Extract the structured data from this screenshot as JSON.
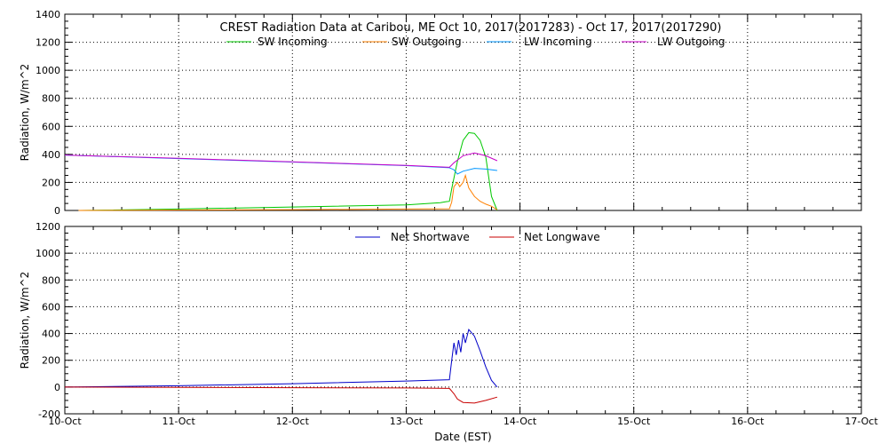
{
  "title": "CREST Radiation Data at Caribou, ME   Oct 10, 2017(2017283) - Oct 17, 2017(2017290)",
  "colors": {
    "sw_incoming": "#00c800",
    "sw_outgoing": "#ff8000",
    "lw_incoming": "#0096ff",
    "lw_outgoing": "#c800c8",
    "net_shortwave": "#0000c8",
    "net_longwave": "#c80000"
  },
  "chart_data": [
    {
      "type": "line",
      "ylabel": "Radiation, W/m^2",
      "ylim": [
        0,
        1400
      ],
      "yticks": [
        "0",
        "200",
        "400",
        "600",
        "800",
        "1000",
        "1200",
        "1400"
      ],
      "xlim": [
        0,
        7
      ],
      "grid": true,
      "legend": "top",
      "series": [
        {
          "name": "SW Incoming",
          "color_key": "sw_incoming",
          "points": [
            [
              0.12,
              0
            ],
            [
              1,
              10
            ],
            [
              2,
              25
            ],
            [
              3,
              40
            ],
            [
              3.3,
              55
            ],
            [
              3.35,
              63
            ],
            [
              3.38,
              65
            ],
            [
              3.4,
              155
            ],
            [
              3.45,
              350
            ],
            [
              3.5,
              500
            ],
            [
              3.55,
              555
            ],
            [
              3.6,
              550
            ],
            [
              3.65,
              500
            ],
            [
              3.7,
              380
            ],
            [
              3.75,
              100
            ],
            [
              3.8,
              0
            ]
          ]
        },
        {
          "name": "SW Outgoing",
          "color_key": "sw_outgoing",
          "points": [
            [
              0.12,
              0
            ],
            [
              1,
              3
            ],
            [
              2,
              6
            ],
            [
              3,
              10
            ],
            [
              3.38,
              12
            ],
            [
              3.4,
              60
            ],
            [
              3.42,
              170
            ],
            [
              3.45,
              200
            ],
            [
              3.47,
              170
            ],
            [
              3.5,
              200
            ],
            [
              3.52,
              250
            ],
            [
              3.55,
              160
            ],
            [
              3.6,
              100
            ],
            [
              3.65,
              65
            ],
            [
              3.7,
              45
            ],
            [
              3.75,
              30
            ],
            [
              3.8,
              5
            ]
          ]
        },
        {
          "name": "LW Incoming",
          "color_key": "lw_incoming",
          "points": [
            [
              0,
              395
            ],
            [
              1,
              370
            ],
            [
              2,
              345
            ],
            [
              3,
              320
            ],
            [
              3.38,
              305
            ],
            [
              3.42,
              290
            ],
            [
              3.45,
              260
            ],
            [
              3.5,
              280
            ],
            [
              3.6,
              300
            ],
            [
              3.7,
              295
            ],
            [
              3.8,
              285
            ]
          ]
        },
        {
          "name": "LW Outgoing",
          "color_key": "lw_outgoing",
          "points": [
            [
              0,
              395
            ],
            [
              1,
              372
            ],
            [
              2,
              347
            ],
            [
              3,
              322
            ],
            [
              3.38,
              308
            ],
            [
              3.42,
              340
            ],
            [
              3.5,
              390
            ],
            [
              3.6,
              410
            ],
            [
              3.7,
              390
            ],
            [
              3.8,
              355
            ]
          ]
        }
      ]
    },
    {
      "type": "line",
      "ylabel": "Radiation, W/m^2",
      "ylim": [
        -200,
        1200
      ],
      "yticks": [
        "-200",
        "0",
        "200",
        "400",
        "600",
        "800",
        "1000",
        "1200"
      ],
      "xlim": [
        0,
        7
      ],
      "xlabel": "Date (EST)",
      "xticks": [
        "10-Oct",
        "11-Oct",
        "12-Oct",
        "13-Oct",
        "14-Oct",
        "15-Oct",
        "16-Oct",
        "17-Oct"
      ],
      "grid": true,
      "legend": "top",
      "series": [
        {
          "name": "Net Shortwave",
          "color_key": "net_shortwave",
          "points": [
            [
              0,
              0
            ],
            [
              1,
              10
            ],
            [
              2,
              25
            ],
            [
              3,
              45
            ],
            [
              3.38,
              55
            ],
            [
              3.4,
              200
            ],
            [
              3.42,
              330
            ],
            [
              3.44,
              240
            ],
            [
              3.46,
              350
            ],
            [
              3.48,
              260
            ],
            [
              3.5,
              400
            ],
            [
              3.52,
              330
            ],
            [
              3.55,
              430
            ],
            [
              3.6,
              380
            ],
            [
              3.65,
              270
            ],
            [
              3.7,
              150
            ],
            [
              3.75,
              50
            ],
            [
              3.8,
              0
            ]
          ]
        },
        {
          "name": "Net Longwave",
          "color_key": "net_longwave",
          "points": [
            [
              0,
              0
            ],
            [
              1,
              -2
            ],
            [
              2,
              -5
            ],
            [
              3,
              -7
            ],
            [
              3.38,
              -10
            ],
            [
              3.42,
              -50
            ],
            [
              3.45,
              -90
            ],
            [
              3.5,
              -115
            ],
            [
              3.6,
              -120
            ],
            [
              3.7,
              -100
            ],
            [
              3.8,
              -75
            ]
          ]
        }
      ]
    }
  ]
}
